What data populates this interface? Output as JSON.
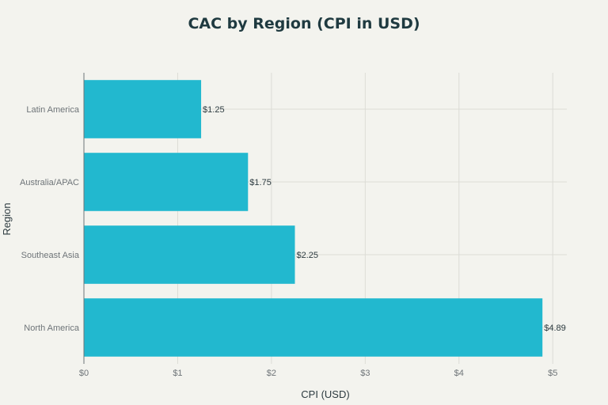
{
  "chart_data": {
    "type": "bar",
    "orientation": "horizontal",
    "title": "CAC by Region (CPI in USD)",
    "xlabel": "CPI (USD)",
    "ylabel": "Region",
    "categories": [
      "Latin America",
      "Australia/APAC",
      "Southeast Asia",
      "North America"
    ],
    "values": [
      1.25,
      1.75,
      2.25,
      4.89
    ],
    "data_labels": [
      "$1.25",
      "$1.75",
      "$2.25",
      "$4.89"
    ],
    "xlim": [
      0,
      5.15
    ],
    "xticks": [
      0,
      1,
      2,
      3,
      4,
      5
    ],
    "xtick_labels": [
      "$0",
      "$1",
      "$2",
      "$3",
      "$4",
      "$5"
    ],
    "grid": true,
    "legend": "none",
    "bar_color": "#22b8cf"
  }
}
